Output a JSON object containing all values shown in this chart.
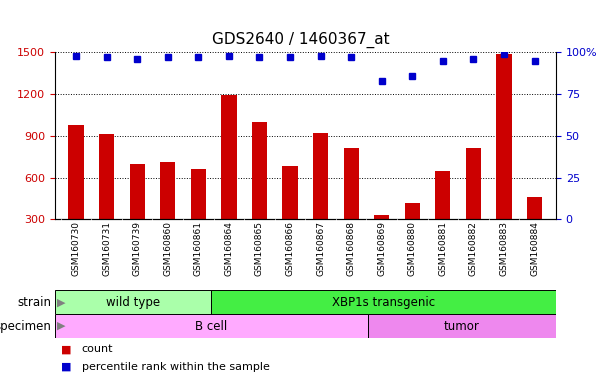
{
  "title": "GDS2640 / 1460367_at",
  "samples": [
    "GSM160730",
    "GSM160731",
    "GSM160739",
    "GSM160860",
    "GSM160861",
    "GSM160864",
    "GSM160865",
    "GSM160866",
    "GSM160867",
    "GSM160868",
    "GSM160869",
    "GSM160880",
    "GSM160881",
    "GSM160882",
    "GSM160883",
    "GSM160884"
  ],
  "counts": [
    980,
    910,
    700,
    710,
    660,
    1190,
    1000,
    680,
    920,
    810,
    330,
    420,
    645,
    810,
    1490,
    460
  ],
  "percentiles": [
    98,
    97,
    96,
    97,
    97,
    98,
    97,
    97,
    98,
    97,
    83,
    86,
    95,
    96,
    99,
    95
  ],
  "ylim_left": [
    300,
    1500
  ],
  "ylim_right": [
    0,
    100
  ],
  "yticks_left": [
    300,
    600,
    900,
    1200,
    1500
  ],
  "yticks_right": [
    0,
    25,
    50,
    75,
    100
  ],
  "bar_color": "#cc0000",
  "dot_color": "#0000cc",
  "bg_color": "#ffffff",
  "strain_groups": [
    {
      "label": "wild type",
      "start": 0,
      "end": 5,
      "color": "#aaffaa"
    },
    {
      "label": "XBP1s transgenic",
      "start": 5,
      "end": 16,
      "color": "#44ee44"
    }
  ],
  "specimen_groups": [
    {
      "label": "B cell",
      "start": 0,
      "end": 10,
      "color": "#ffaaff"
    },
    {
      "label": "tumor",
      "start": 10,
      "end": 16,
      "color": "#ee88ee"
    }
  ],
  "strain_label": "strain",
  "specimen_label": "specimen",
  "legend_count_label": "count",
  "legend_pct_label": "percentile rank within the sample",
  "tick_label_color": "#cc0000",
  "right_axis_color": "#0000cc"
}
